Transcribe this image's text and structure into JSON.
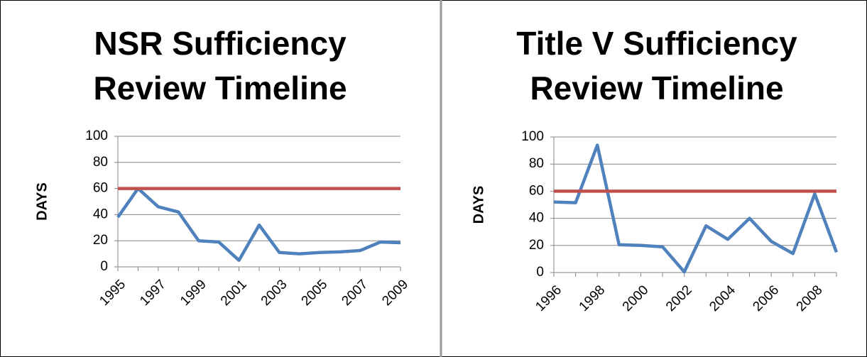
{
  "chart_data": [
    {
      "type": "line",
      "title": [
        "NSR Sufficiency",
        "Review Timeline"
      ],
      "y_label": "DAYS",
      "categories": [
        "1995",
        null,
        "1997",
        null,
        "1999",
        null,
        "2001",
        null,
        "2003",
        null,
        "2005",
        null,
        "2007",
        null,
        "2009"
      ],
      "series": [
        {
          "color": "#4f81bd",
          "values": [
            38,
            60,
            46,
            42,
            20,
            19,
            5,
            32,
            11,
            10,
            11,
            11.5,
            12.5,
            19,
            18.5
          ]
        },
        {
          "color": "#c0504d",
          "values": [
            60,
            60,
            60,
            60,
            60,
            60,
            60,
            60,
            60,
            60,
            60,
            60,
            60,
            60,
            60
          ]
        }
      ],
      "ylim": [
        0,
        100
      ],
      "yticks": [
        0,
        20,
        40,
        60,
        80,
        100
      ],
      "grid": true
    },
    {
      "type": "line",
      "title": [
        "Title V Sufficiency",
        "Review Timeline"
      ],
      "y_label": "DAYS",
      "categories": [
        "1996",
        null,
        "1998",
        null,
        "2000",
        null,
        "2002",
        null,
        "2004",
        null,
        "2006",
        null,
        "2008",
        null
      ],
      "series": [
        {
          "color": "#4f81bd",
          "values": [
            52,
            51.5,
            94,
            20.5,
            20,
            19,
            0.5,
            34.5,
            24.5,
            40,
            23,
            14,
            58,
            15
          ]
        },
        {
          "color": "#c0504d",
          "values": [
            60,
            60,
            60,
            60,
            60,
            60,
            60,
            60,
            60,
            60,
            60,
            60,
            60,
            60
          ]
        }
      ],
      "ylim": [
        0,
        100
      ],
      "yticks": [
        0,
        20,
        40,
        60,
        80,
        100
      ],
      "grid": true
    }
  ]
}
